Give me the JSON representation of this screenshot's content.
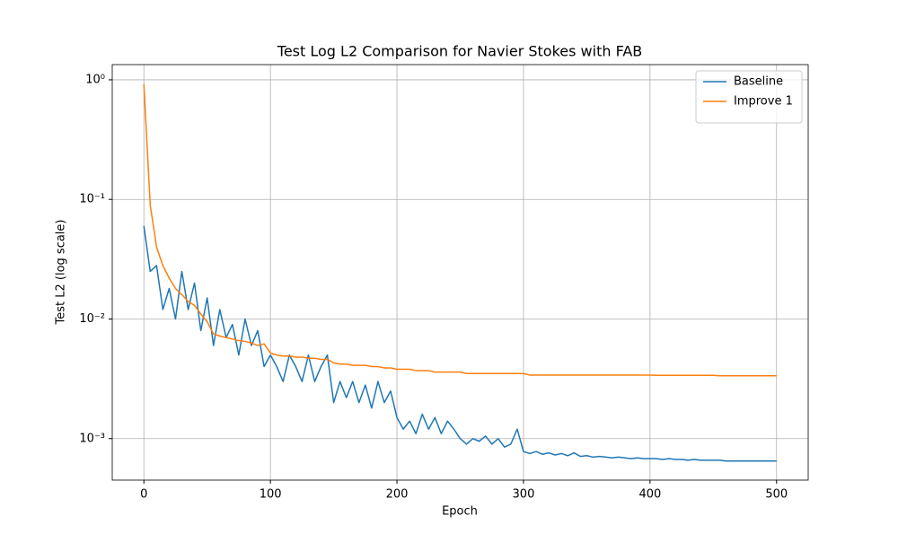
{
  "chart_data": {
    "type": "line",
    "title": "Test Log L2 Comparison for Navier Stokes with FAB",
    "x_label": "Epoch",
    "y_label": "Test L2 (log scale)",
    "x": [
      0,
      5,
      10,
      15,
      20,
      25,
      30,
      35,
      40,
      45,
      50,
      55,
      60,
      65,
      70,
      75,
      80,
      85,
      90,
      95,
      100,
      105,
      110,
      115,
      120,
      125,
      130,
      135,
      140,
      145,
      150,
      155,
      160,
      165,
      170,
      175,
      180,
      185,
      190,
      195,
      200,
      205,
      210,
      215,
      220,
      225,
      230,
      235,
      240,
      245,
      250,
      255,
      260,
      265,
      270,
      275,
      280,
      285,
      290,
      295,
      300,
      305,
      310,
      315,
      320,
      325,
      330,
      335,
      340,
      345,
      350,
      355,
      360,
      365,
      370,
      375,
      380,
      385,
      390,
      395,
      400,
      405,
      410,
      415,
      420,
      425,
      430,
      435,
      440,
      445,
      450,
      455,
      460,
      465,
      470,
      475,
      480,
      485,
      490,
      495,
      500
    ],
    "series": [
      {
        "name": "Baseline",
        "color": "#1f77b4",
        "values": [
          0.06,
          0.025,
          0.028,
          0.012,
          0.018,
          0.01,
          0.025,
          0.012,
          0.02,
          0.008,
          0.015,
          0.006,
          0.012,
          0.007,
          0.009,
          0.005,
          0.01,
          0.006,
          0.008,
          0.004,
          0.005,
          0.004,
          0.003,
          0.005,
          0.004,
          0.003,
          0.005,
          0.003,
          0.004,
          0.005,
          0.002,
          0.003,
          0.0022,
          0.003,
          0.002,
          0.0028,
          0.0018,
          0.003,
          0.002,
          0.0025,
          0.0015,
          0.0012,
          0.0014,
          0.0011,
          0.0016,
          0.0012,
          0.0015,
          0.0011,
          0.0014,
          0.0012,
          0.001,
          0.0009,
          0.001,
          0.00095,
          0.00105,
          0.0009,
          0.001,
          0.00085,
          0.0009,
          0.0012,
          0.00078,
          0.00075,
          0.00078,
          0.00074,
          0.00076,
          0.00073,
          0.00075,
          0.00072,
          0.00076,
          0.00071,
          0.00072,
          0.0007,
          0.00071,
          0.0007,
          0.00069,
          0.0007,
          0.00069,
          0.00068,
          0.00069,
          0.00068,
          0.00068,
          0.00068,
          0.00067,
          0.00068,
          0.00067,
          0.00067,
          0.00066,
          0.00067,
          0.00066,
          0.00066,
          0.00066,
          0.00066,
          0.00065,
          0.00065,
          0.00065,
          0.00065,
          0.00065,
          0.00065,
          0.00065,
          0.00065,
          0.00065
        ]
      },
      {
        "name": "Improve 1",
        "color": "#ff7f0e",
        "values": [
          0.92,
          0.09,
          0.04,
          0.028,
          0.022,
          0.018,
          0.016,
          0.014,
          0.013,
          0.011,
          0.0095,
          0.0075,
          0.0072,
          0.007,
          0.0068,
          0.0066,
          0.0065,
          0.0063,
          0.006,
          0.0062,
          0.0052,
          0.005,
          0.0049,
          0.0049,
          0.0048,
          0.0048,
          0.0047,
          0.0047,
          0.0046,
          0.0046,
          0.0043,
          0.0042,
          0.0042,
          0.0041,
          0.0041,
          0.0041,
          0.004,
          0.004,
          0.0039,
          0.0039,
          0.0038,
          0.0038,
          0.0038,
          0.0037,
          0.0037,
          0.0037,
          0.0036,
          0.0036,
          0.0036,
          0.0036,
          0.0036,
          0.0035,
          0.0035,
          0.0035,
          0.0035,
          0.0035,
          0.0035,
          0.0035,
          0.0035,
          0.0035,
          0.0035,
          0.0034,
          0.0034,
          0.0034,
          0.0034,
          0.0034,
          0.0034,
          0.0034,
          0.0034,
          0.0034,
          0.0034,
          0.0034,
          0.0034,
          0.0034,
          0.0034,
          0.0034,
          0.0034,
          0.0034,
          0.0034,
          0.0034,
          0.0034,
          0.00338,
          0.00338,
          0.00338,
          0.00338,
          0.00338,
          0.00338,
          0.00338,
          0.00338,
          0.00338,
          0.00338,
          0.00335,
          0.00335,
          0.00335,
          0.00335,
          0.00335,
          0.00335,
          0.00335,
          0.00335,
          0.00335,
          0.00335
        ]
      }
    ],
    "xlim": [
      -25,
      525
    ],
    "ylim": [
      0.00045,
      1.34
    ],
    "log_y": true,
    "xticks": [
      0,
      100,
      200,
      300,
      400,
      500
    ],
    "yticks": [
      {
        "value": 0.001,
        "label": "10⁻³"
      },
      {
        "value": 0.01,
        "label": "10⁻²"
      },
      {
        "value": 0.1,
        "label": "10⁻¹"
      },
      {
        "value": 1,
        "label": "10⁰"
      }
    ],
    "grid": true,
    "legend": "upper right"
  }
}
